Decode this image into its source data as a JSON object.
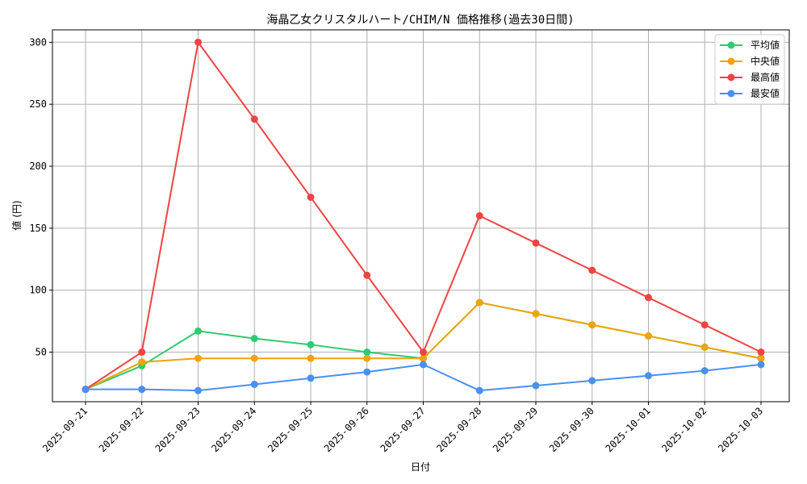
{
  "chart_data": {
    "type": "line",
    "title": "海晶乙女クリスタルハート/CHIM/N 価格推移(過去30日間)",
    "xlabel": "日付",
    "ylabel": "値 (円)",
    "categories": [
      "2025-09-21",
      "2025-09-22",
      "2025-09-23",
      "2025-09-24",
      "2025-09-25",
      "2025-09-26",
      "2025-09-27",
      "2025-09-28",
      "2025-09-29",
      "2025-09-30",
      "2025-10-01",
      "2025-10-02",
      "2025-10-03"
    ],
    "ylim": [
      10,
      310
    ],
    "yticks": [
      50,
      100,
      150,
      200,
      250,
      300
    ],
    "grid": true,
    "legend_position": "top-right",
    "series": [
      {
        "name": "平均値",
        "color": "#2ecc71",
        "values": [
          20,
          39,
          67,
          61,
          56,
          50,
          45,
          90,
          81,
          72,
          63,
          54,
          45
        ]
      },
      {
        "name": "中央値",
        "color": "#f0a30a",
        "values": [
          20,
          42,
          45,
          45,
          45,
          45,
          45,
          90,
          81,
          72,
          63,
          54,
          45
        ]
      },
      {
        "name": "最高値",
        "color": "#ef4444",
        "values": [
          20,
          50,
          300,
          238,
          175,
          112,
          50,
          160,
          138,
          116,
          94,
          72,
          50
        ]
      },
      {
        "name": "最安値",
        "color": "#4a90f0",
        "values": [
          20,
          20,
          19,
          24,
          29,
          34,
          40,
          19,
          23,
          27,
          31,
          35,
          40
        ]
      }
    ]
  }
}
